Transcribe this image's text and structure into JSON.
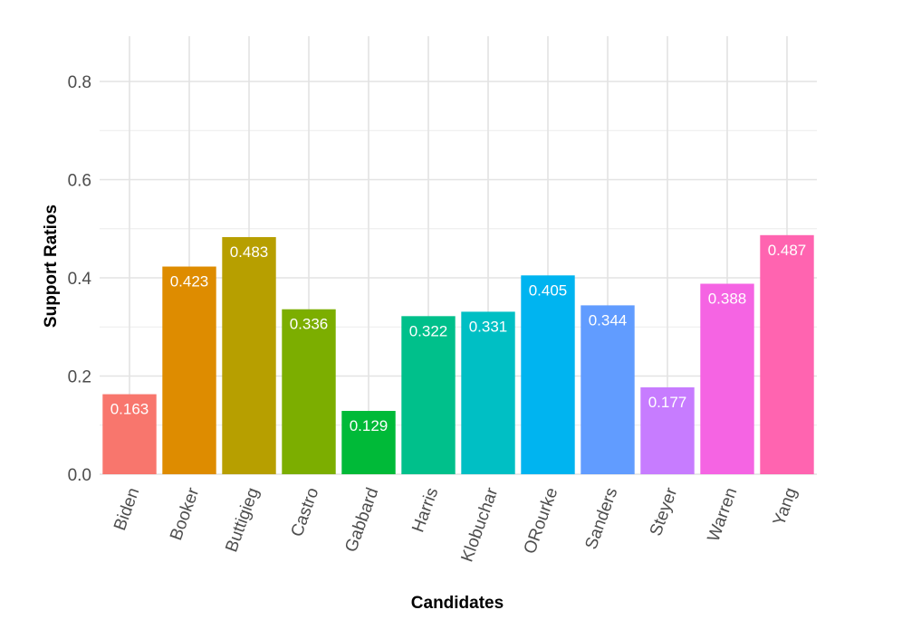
{
  "chart_data": {
    "type": "bar",
    "title": "",
    "xlabel": "Candidates",
    "ylabel": "Support Ratios",
    "ylim": [
      0,
      0.88
    ],
    "yticks": [
      0.0,
      0.2,
      0.4,
      0.6,
      0.8
    ],
    "ytick_labels": [
      "0.0",
      "0.2",
      "0.4",
      "0.6",
      "0.8"
    ],
    "grid": true,
    "legend": "none",
    "xtick_rotation_deg": -70,
    "categories": [
      "Biden",
      "Booker",
      "Buttigieg",
      "Castro",
      "Gabbard",
      "Harris",
      "Klobuchar",
      "ORourke",
      "Sanders",
      "Steyer",
      "Warren",
      "Yang"
    ],
    "values": [
      0.163,
      0.423,
      0.483,
      0.336,
      0.129,
      0.322,
      0.331,
      0.405,
      0.344,
      0.177,
      0.388,
      0.487
    ],
    "data_labels": [
      "0.163",
      "0.423",
      "0.483",
      "0.336",
      "0.129",
      "0.322",
      "0.331",
      "0.405",
      "0.344",
      "0.177",
      "0.388",
      "0.487"
    ],
    "colors": [
      "#F8766D",
      "#DE8C00",
      "#B79F00",
      "#7CAE00",
      "#00BA38",
      "#00C08B",
      "#00BFC4",
      "#00B4F0",
      "#619CFF",
      "#C77CFF",
      "#F564E3",
      "#FF64B0"
    ]
  }
}
